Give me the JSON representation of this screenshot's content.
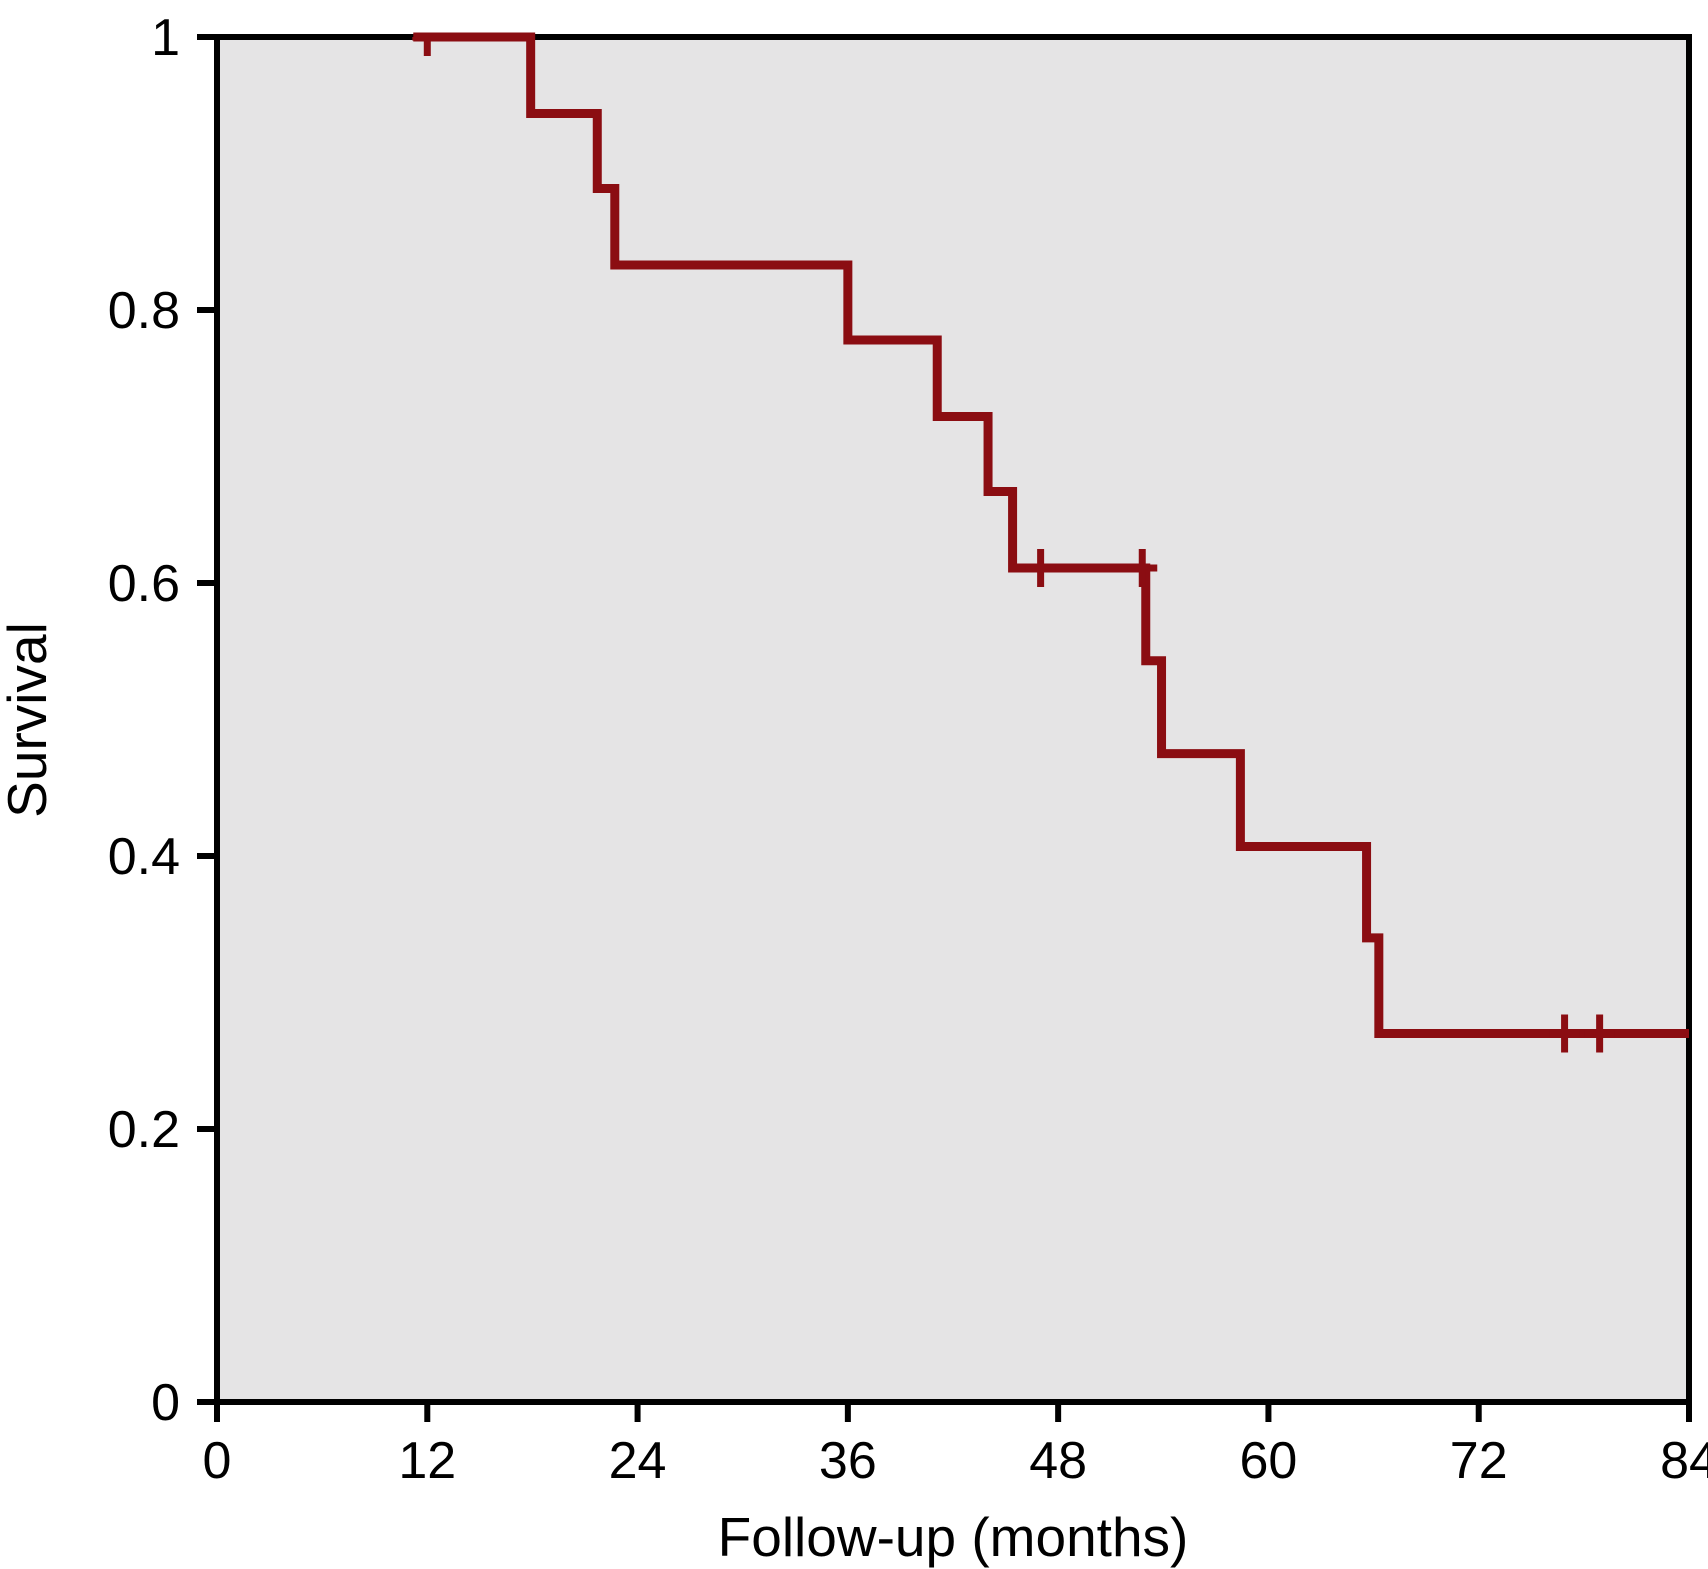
{
  "chart_data": {
    "type": "line",
    "subtype": "kaplan-meier-step-curve",
    "title": "",
    "xlabel": "Follow-up (months)",
    "ylabel": "Survival",
    "xlim": [
      0,
      84
    ],
    "ylim": [
      0,
      1
    ],
    "x_ticks": [
      0,
      12,
      24,
      36,
      48,
      60,
      72,
      84
    ],
    "x_tick_labels": [
      "0",
      "12",
      "24",
      "36",
      "48",
      "60",
      "72",
      "84"
    ],
    "y_ticks": [
      0,
      0.2,
      0.4,
      0.6,
      0.8,
      1
    ],
    "y_tick_labels": [
      "0",
      "0.2",
      "0.4",
      "0.6",
      "0.8",
      "1"
    ],
    "grid": false,
    "legend": false,
    "plot_bg_color": "#e5e4e5",
    "line_color": "#8b0d12",
    "axis_color": "#000000",
    "series": [
      {
        "name": "survival",
        "curve_start": {
          "t": 11.2,
          "s": 1.0
        },
        "curve_end_t": 84,
        "event_steps": [
          {
            "t": 17.9,
            "s": 0.944
          },
          {
            "t": 21.7,
            "s": 0.889
          },
          {
            "t": 22.7,
            "s": 0.833
          },
          {
            "t": 36.0,
            "s": 0.778
          },
          {
            "t": 41.1,
            "s": 0.722
          },
          {
            "t": 44.0,
            "s": 0.667
          },
          {
            "t": 45.4,
            "s": 0.611
          },
          {
            "t": 53.0,
            "s": 0.543
          },
          {
            "t": 53.9,
            "s": 0.475
          },
          {
            "t": 58.4,
            "s": 0.407
          },
          {
            "t": 65.6,
            "s": 0.34
          },
          {
            "t": 66.3,
            "s": 0.27
          }
        ],
        "censor_marks": [
          {
            "t": 12.0,
            "s": 1.0
          },
          {
            "t": 47.0,
            "s": 0.611
          },
          {
            "t": 52.8,
            "s": 0.611
          },
          {
            "t": 76.9,
            "s": 0.27
          },
          {
            "t": 78.9,
            "s": 0.27
          }
        ]
      }
    ]
  }
}
